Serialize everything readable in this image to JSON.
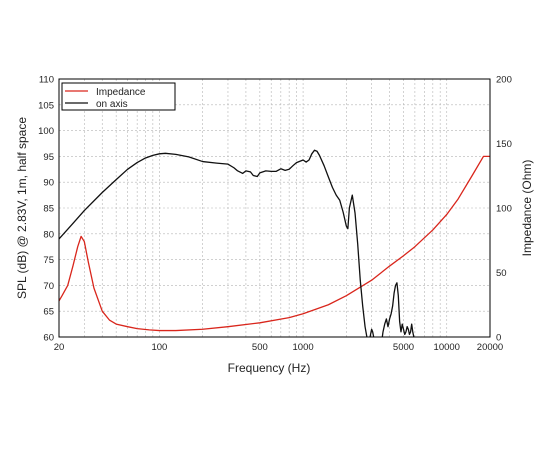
{
  "chart_data": {
    "type": "line",
    "title": "",
    "xlabel": "Frequency (Hz)",
    "ylabel": "SPL (dB) @ 2.83V, 1m, half space",
    "y2label": "Impedance (Ohm)",
    "x_scale": "log",
    "xlim": [
      20,
      20000
    ],
    "ylim": [
      60,
      110
    ],
    "y2lim": [
      0,
      200
    ],
    "grid": true,
    "legend_position": "top-left",
    "x_ticks": [
      20,
      100,
      500,
      1000,
      5000,
      10000,
      20000
    ],
    "x_tick_labels": [
      "20",
      "100",
      "500",
      "1000",
      "5000",
      "10000",
      "20000"
    ],
    "y_ticks": [
      60,
      65,
      70,
      75,
      80,
      85,
      90,
      95,
      100,
      105,
      110
    ],
    "y_tick_labels": [
      "60",
      "65",
      "70",
      "75",
      "80",
      "85",
      "90",
      "95",
      "100",
      "105",
      "110"
    ],
    "y2_ticks": [
      0,
      50,
      100,
      150,
      200
    ],
    "y2_tick_labels": [
      "0",
      "50",
      "100",
      "150",
      "200"
    ],
    "series": [
      {
        "name": "Impedance",
        "axis": "right",
        "color": "#d9261c",
        "x": [
          20,
          21,
          23,
          25,
          27,
          28.5,
          30,
          32,
          35,
          40,
          45,
          50,
          60,
          70,
          85,
          100,
          130,
          200,
          300,
          500,
          800,
          1000,
          1500,
          2000,
          3000,
          4000,
          5000,
          6000,
          7000,
          8000,
          10000,
          12000,
          15000,
          18000,
          20000
        ],
        "y": [
          28,
          32,
          40,
          55,
          70,
          78,
          74,
          58,
          38,
          20,
          13,
          10,
          8,
          6.5,
          5.5,
          5,
          5,
          6,
          8,
          11,
          15,
          18,
          25,
          32,
          44,
          55,
          63,
          70,
          77,
          83,
          95,
          107,
          125,
          140,
          140
        ]
      },
      {
        "name": "on axis",
        "axis": "left",
        "color": "#111111",
        "x": [
          20,
          25,
          30,
          40,
          50,
          60,
          70,
          80,
          90,
          100,
          110,
          130,
          160,
          200,
          250,
          300,
          330,
          350,
          380,
          400,
          430,
          450,
          480,
          500,
          550,
          600,
          650,
          700,
          750,
          800,
          850,
          900,
          1000,
          1050,
          1100,
          1150,
          1200,
          1250,
          1300,
          1400,
          1500,
          1600,
          1700,
          1800,
          1900,
          2000,
          2050,
          2100,
          2200,
          2300,
          2400,
          2500,
          2600,
          2700,
          2800,
          2850,
          2900,
          2950,
          3000,
          3050,
          3100,
          3150,
          3200,
          3300,
          3400,
          3500,
          3600,
          3700,
          3800,
          3900,
          4000,
          4100,
          4200,
          4300,
          4400,
          4500,
          4600,
          4700,
          4800,
          4900,
          5000,
          5100,
          5200,
          5300,
          5400,
          5500,
          5600,
          5700,
          5800,
          5900,
          6000
        ],
        "y": [
          79,
          82,
          84.5,
          88,
          90.5,
          92.5,
          93.8,
          94.7,
          95.2,
          95.5,
          95.6,
          95.4,
          94.9,
          94,
          93.7,
          93.5,
          92.8,
          92.2,
          91.7,
          92.2,
          92,
          91.3,
          91.1,
          91.8,
          92.2,
          92.1,
          92.1,
          92.6,
          92.3,
          92.5,
          93.2,
          93.8,
          94.3,
          93.9,
          94.3,
          95.5,
          96.2,
          96,
          95.2,
          93.2,
          91,
          89,
          87.5,
          86.5,
          84.2,
          81.5,
          81,
          85,
          87.5,
          84,
          78,
          71,
          66,
          62,
          59.5,
          58.5,
          59.5,
          60.5,
          61.5,
          61,
          60,
          59,
          58,
          57,
          56.5,
          58.5,
          61,
          62.5,
          63.5,
          62,
          63.5,
          64.5,
          66,
          68.5,
          70,
          70.5,
          68,
          63,
          61,
          62.5,
          61.5,
          60.5,
          61,
          62,
          61.5,
          60.5,
          61,
          62.5,
          61,
          60,
          59
        ]
      }
    ]
  }
}
